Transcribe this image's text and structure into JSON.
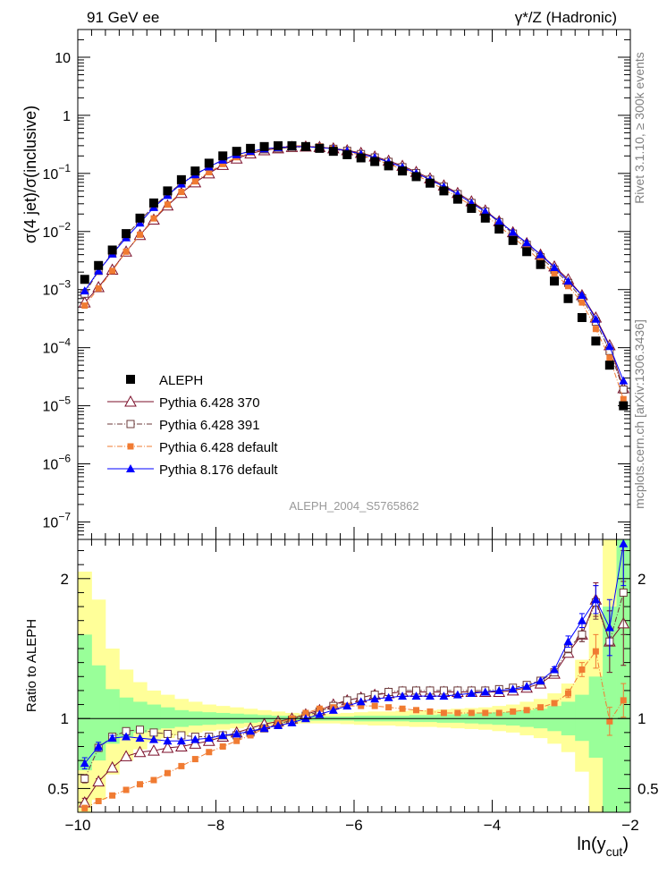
{
  "header": {
    "left_title": "91 GeV ee",
    "right_title": "γ*/Z (Hadronic)"
  },
  "side_labels": {
    "rivet": "Rivet 3.1.10, ≥ 300k events",
    "mcplots": "mcplots.cern.ch [arXiv:1306.3436]"
  },
  "chart_data": [
    {
      "panel": "main",
      "type": "scatter",
      "title": "ALEPH_2004_S5765862",
      "ylabel": "σ(4 jet)/σ(inclusive)",
      "xlabel": "ln(y_cut)",
      "yscale": "log",
      "xlim": [
        -10.0,
        -2.0
      ],
      "ylim": [
        5e-08,
        30
      ],
      "yticks": [
        {
          "v": 1e-07,
          "label": "10-7"
        },
        {
          "v": 1e-06,
          "label": "10-6"
        },
        {
          "v": 1e-05,
          "label": "10-5"
        },
        {
          "v": 0.0001,
          "label": "10-4"
        },
        {
          "v": 0.001,
          "label": "10-3"
        },
        {
          "v": 0.01,
          "label": "10-2"
        },
        {
          "v": 0.1,
          "label": "10-1"
        },
        {
          "v": 1,
          "label": "1"
        },
        {
          "v": 10,
          "label": "10"
        }
      ],
      "x": [
        -9.9,
        -9.7,
        -9.5,
        -9.3,
        -9.1,
        -8.9,
        -8.7,
        -8.5,
        -8.3,
        -8.1,
        -7.9,
        -7.7,
        -7.5,
        -7.3,
        -7.1,
        -6.9,
        -6.7,
        -6.5,
        -6.3,
        -6.1,
        -5.9,
        -5.7,
        -5.5,
        -5.3,
        -5.1,
        -4.9,
        -4.7,
        -4.5,
        -4.3,
        -4.1,
        -3.9,
        -3.7,
        -3.5,
        -3.3,
        -3.1,
        -2.9,
        -2.7,
        -2.5,
        -2.3,
        -2.1
      ],
      "series": [
        {
          "name": "ALEPH",
          "color": "#000000",
          "marker": "square-filled",
          "line": "none",
          "values": [
            0.0015,
            0.0026,
            0.0048,
            0.0092,
            0.017,
            0.031,
            0.05,
            0.078,
            0.11,
            0.15,
            0.2,
            0.24,
            0.27,
            0.29,
            0.3,
            0.3,
            0.29,
            0.27,
            0.24,
            0.21,
            0.185,
            0.16,
            0.135,
            0.11,
            0.088,
            0.068,
            0.05,
            0.036,
            0.025,
            0.017,
            0.011,
            0.007,
            0.0045,
            0.0027,
            0.0014,
            0.0007,
            0.00033,
            0.00013,
            5e-05,
            1e-05
          ]
        },
        {
          "name": "Pythia 6.428 370",
          "color": "#7b0f2a",
          "marker": "triangle-open",
          "line": "solid",
          "values": [
            0.0006,
            0.0011,
            0.0022,
            0.0045,
            0.0087,
            0.016,
            0.028,
            0.046,
            0.07,
            0.1,
            0.14,
            0.18,
            0.22,
            0.25,
            0.27,
            0.285,
            0.29,
            0.285,
            0.27,
            0.25,
            0.225,
            0.195,
            0.165,
            0.135,
            0.106,
            0.082,
            0.062,
            0.046,
            0.033,
            0.023,
            0.015,
            0.0097,
            0.0063,
            0.004,
            0.0025,
            0.0015,
            0.0008,
            0.00033,
            0.00011,
            2e-05
          ]
        },
        {
          "name": "Pythia 6.428 391",
          "color": "#6b3a3a",
          "marker": "square-open",
          "line": "dashdot",
          "values": [
            0.00085,
            0.0021,
            0.0042,
            0.0085,
            0.0156,
            0.027,
            0.044,
            0.068,
            0.097,
            0.13,
            0.17,
            0.21,
            0.24,
            0.26,
            0.27,
            0.28,
            0.285,
            0.28,
            0.265,
            0.245,
            0.215,
            0.188,
            0.158,
            0.128,
            0.101,
            0.078,
            0.059,
            0.044,
            0.031,
            0.022,
            0.0145,
            0.0092,
            0.0059,
            0.0036,
            0.0022,
            0.0013,
            0.00071,
            0.00028,
            8.8e-05,
            1.9e-05
          ]
        },
        {
          "name": "Pythia 6.428 default",
          "color": "#f07b32",
          "marker": "square-small",
          "line": "dashdot",
          "values": [
            0.00053,
            0.00105,
            0.0021,
            0.0045,
            0.0088,
            0.0168,
            0.029,
            0.048,
            0.073,
            0.105,
            0.145,
            0.19,
            0.23,
            0.26,
            0.285,
            0.3,
            0.3,
            0.29,
            0.265,
            0.235,
            0.205,
            0.175,
            0.145,
            0.117,
            0.093,
            0.071,
            0.053,
            0.039,
            0.028,
            0.019,
            0.0124,
            0.0079,
            0.0051,
            0.0031,
            0.0019,
            0.00115,
            0.0006,
            0.00021,
            6.7e-05,
            1.3e-05
          ]
        },
        {
          "name": "Pythia 8.176 default",
          "color": "#0000ff",
          "marker": "triangle-filled",
          "line": "solid",
          "values": [
            0.00095,
            0.0021,
            0.0041,
            0.0078,
            0.014,
            0.026,
            0.042,
            0.066,
            0.095,
            0.13,
            0.17,
            0.21,
            0.24,
            0.265,
            0.28,
            0.29,
            0.29,
            0.28,
            0.265,
            0.245,
            0.215,
            0.188,
            0.157,
            0.128,
            0.101,
            0.078,
            0.059,
            0.044,
            0.031,
            0.022,
            0.015,
            0.0097,
            0.0064,
            0.004,
            0.0024,
            0.0014,
            0.0008,
            0.00031,
            0.000105,
            2.7e-05
          ]
        }
      ]
    },
    {
      "panel": "ratio",
      "type": "scatter",
      "ylabel": "Ratio to ALEPH",
      "xlabel": "ln(y_cut)",
      "xlim": [
        -10.0,
        -2.0
      ],
      "ylim": [
        0.33,
        2.28
      ],
      "yticks": [
        {
          "v": 0.5,
          "label": "0.5"
        },
        {
          "v": 1,
          "label": "1"
        },
        {
          "v": 2,
          "label": "2"
        }
      ],
      "xticks": [
        {
          "v": -10,
          "label": "−10"
        },
        {
          "v": -8,
          "label": "−8"
        },
        {
          "v": -6,
          "label": "−6"
        },
        {
          "v": -4,
          "label": "−4"
        },
        {
          "v": -2,
          "label": "−2"
        }
      ],
      "bin_edges": [
        -10.0,
        -9.8,
        -9.6,
        -9.4,
        -9.2,
        -9.0,
        -8.8,
        -8.6,
        -8.4,
        -8.2,
        -8.0,
        -7.8,
        -7.6,
        -7.4,
        -7.2,
        -7.0,
        -6.8,
        -6.6,
        -6.4,
        -6.2,
        -6.0,
        -5.8,
        -5.6,
        -5.4,
        -5.2,
        -5.0,
        -4.8,
        -4.6,
        -4.4,
        -4.2,
        -4.0,
        -3.8,
        -3.6,
        -3.4,
        -3.2,
        -3.0,
        -2.8,
        -2.6,
        -2.4,
        -2.2,
        -2.0
      ],
      "band_stat": [
        [
          0.63,
          1.6
        ],
        [
          0.7,
          1.38
        ],
        [
          0.82,
          1.21
        ],
        [
          0.87,
          1.15
        ],
        [
          0.9,
          1.12
        ],
        [
          0.92,
          1.1
        ],
        [
          0.93,
          1.08
        ],
        [
          0.94,
          1.06
        ],
        [
          0.95,
          1.05
        ],
        [
          0.955,
          1.045
        ],
        [
          0.96,
          1.04
        ],
        [
          0.965,
          1.035
        ],
        [
          0.97,
          1.03
        ],
        [
          0.975,
          1.025
        ],
        [
          0.98,
          1.02
        ],
        [
          0.98,
          1.02
        ],
        [
          0.985,
          1.015
        ],
        [
          0.985,
          1.015
        ],
        [
          0.985,
          1.015
        ],
        [
          0.985,
          1.015
        ],
        [
          0.98,
          1.02
        ],
        [
          0.98,
          1.02
        ],
        [
          0.98,
          1.02
        ],
        [
          0.98,
          1.02
        ],
        [
          0.975,
          1.025
        ],
        [
          0.975,
          1.025
        ],
        [
          0.97,
          1.03
        ],
        [
          0.97,
          1.03
        ],
        [
          0.965,
          1.035
        ],
        [
          0.96,
          1.04
        ],
        [
          0.955,
          1.045
        ],
        [
          0.95,
          1.05
        ],
        [
          0.94,
          1.06
        ],
        [
          0.93,
          1.07
        ],
        [
          0.91,
          1.09
        ],
        [
          0.88,
          1.12
        ],
        [
          0.84,
          1.17
        ],
        [
          0.72,
          1.3
        ],
        [
          0.33,
          1.8
        ],
        [
          0.33,
          2.28
        ]
      ],
      "band_total": [
        [
          0.33,
          2.05
        ],
        [
          0.42,
          1.85
        ],
        [
          0.6,
          1.5
        ],
        [
          0.7,
          1.35
        ],
        [
          0.78,
          1.26
        ],
        [
          0.83,
          1.2
        ],
        [
          0.86,
          1.17
        ],
        [
          0.88,
          1.14
        ],
        [
          0.9,
          1.12
        ],
        [
          0.91,
          1.1
        ],
        [
          0.92,
          1.09
        ],
        [
          0.93,
          1.08
        ],
        [
          0.94,
          1.07
        ],
        [
          0.95,
          1.06
        ],
        [
          0.96,
          1.05
        ],
        [
          0.96,
          1.04
        ],
        [
          0.965,
          1.035
        ],
        [
          0.965,
          1.035
        ],
        [
          0.965,
          1.035
        ],
        [
          0.96,
          1.04
        ],
        [
          0.955,
          1.045
        ],
        [
          0.95,
          1.05
        ],
        [
          0.95,
          1.05
        ],
        [
          0.945,
          1.055
        ],
        [
          0.94,
          1.06
        ],
        [
          0.94,
          1.06
        ],
        [
          0.935,
          1.065
        ],
        [
          0.93,
          1.07
        ],
        [
          0.925,
          1.075
        ],
        [
          0.92,
          1.08
        ],
        [
          0.91,
          1.09
        ],
        [
          0.9,
          1.1
        ],
        [
          0.88,
          1.12
        ],
        [
          0.86,
          1.14
        ],
        [
          0.82,
          1.18
        ],
        [
          0.76,
          1.25
        ],
        [
          0.62,
          1.42
        ],
        [
          0.33,
          1.75
        ],
        [
          0.33,
          2.28
        ],
        [
          0.33,
          2.28
        ]
      ],
      "series": [
        {
          "name": "Pythia 6.428 370",
          "color": "#7b0f2a",
          "marker": "triangle-open",
          "line": "solid",
          "values": [
            0.4,
            0.55,
            0.65,
            0.73,
            0.76,
            0.77,
            0.79,
            0.8,
            0.82,
            0.84,
            0.87,
            0.9,
            0.93,
            0.96,
            0.98,
            1.0,
            1.03,
            1.06,
            1.1,
            1.13,
            1.15,
            1.17,
            1.18,
            1.19,
            1.19,
            1.19,
            1.19,
            1.19,
            1.19,
            1.19,
            1.19,
            1.2,
            1.22,
            1.25,
            1.32,
            1.47,
            1.6,
            1.85,
            1.55,
            1.68
          ],
          "errors": [
            0.03,
            0.02,
            0.01,
            0.01,
            0,
            0,
            0,
            0,
            0,
            0,
            0,
            0,
            0,
            0,
            0,
            0,
            0,
            0,
            0,
            0,
            0,
            0,
            0,
            0,
            0,
            0,
            0,
            0,
            0,
            0,
            0,
            0,
            0,
            0,
            0,
            0.03,
            0.05,
            0.12,
            0.22,
            0.3
          ]
        },
        {
          "name": "Pythia 6.428 391",
          "color": "#6b3a3a",
          "marker": "square-open",
          "line": "dashdot",
          "values": [
            0.57,
            0.79,
            0.87,
            0.91,
            0.92,
            0.9,
            0.89,
            0.88,
            0.87,
            0.87,
            0.88,
            0.88,
            0.9,
            0.93,
            0.96,
            0.99,
            1.02,
            1.05,
            1.09,
            1.13,
            1.15,
            1.17,
            1.19,
            1.2,
            1.2,
            1.2,
            1.2,
            1.2,
            1.2,
            1.2,
            1.21,
            1.22,
            1.24,
            1.27,
            1.33,
            1.5,
            1.6,
            1.83,
            1.55,
            1.9
          ],
          "errors": [
            0.03,
            0.02,
            0.01,
            0,
            0,
            0,
            0,
            0,
            0,
            0,
            0,
            0,
            0,
            0,
            0,
            0,
            0,
            0,
            0,
            0,
            0,
            0,
            0,
            0,
            0,
            0,
            0,
            0,
            0,
            0,
            0,
            0,
            0,
            0,
            0,
            0.03,
            0.05,
            0.12,
            0.22,
            0.3
          ]
        },
        {
          "name": "Pythia 6.428 default",
          "color": "#f07b32",
          "marker": "square-small",
          "line": "dashdot",
          "values": [
            0.36,
            0.41,
            0.45,
            0.49,
            0.53,
            0.56,
            0.61,
            0.66,
            0.71,
            0.76,
            0.8,
            0.84,
            0.88,
            0.93,
            0.97,
            1.0,
            1.04,
            1.07,
            1.08,
            1.09,
            1.09,
            1.09,
            1.08,
            1.07,
            1.06,
            1.05,
            1.04,
            1.04,
            1.04,
            1.04,
            1.04,
            1.05,
            1.06,
            1.08,
            1.11,
            1.18,
            1.35,
            1.48,
            0.98,
            1.13
          ],
          "errors": [
            0.02,
            0.01,
            0,
            0,
            0,
            0,
            0,
            0,
            0,
            0,
            0,
            0,
            0,
            0,
            0,
            0,
            0,
            0,
            0,
            0,
            0,
            0,
            0,
            0,
            0,
            0,
            0,
            0,
            0,
            0,
            0,
            0,
            0,
            0,
            0,
            0.03,
            0.05,
            0.12,
            0.1,
            0.12
          ]
        },
        {
          "name": "Pythia 8.176 default",
          "color": "#0000ff",
          "marker": "triangle-filled",
          "line": "solid",
          "values": [
            0.68,
            0.8,
            0.86,
            0.87,
            0.86,
            0.85,
            0.84,
            0.84,
            0.85,
            0.86,
            0.88,
            0.89,
            0.91,
            0.93,
            0.95,
            0.97,
            1.0,
            1.03,
            1.06,
            1.09,
            1.12,
            1.14,
            1.15,
            1.16,
            1.16,
            1.16,
            1.16,
            1.17,
            1.18,
            1.19,
            1.2,
            1.21,
            1.23,
            1.27,
            1.35,
            1.55,
            1.7,
            1.85,
            1.65,
            2.25
          ],
          "errors": [
            0.04,
            0.03,
            0.02,
            0.01,
            0,
            0,
            0,
            0,
            0,
            0,
            0,
            0,
            0,
            0,
            0,
            0,
            0,
            0,
            0,
            0,
            0,
            0,
            0,
            0,
            0,
            0,
            0,
            0,
            0,
            0,
            0,
            0,
            0,
            0,
            0.02,
            0.04,
            0.05,
            0.1,
            0.2,
            0.3
          ]
        }
      ]
    }
  ]
}
